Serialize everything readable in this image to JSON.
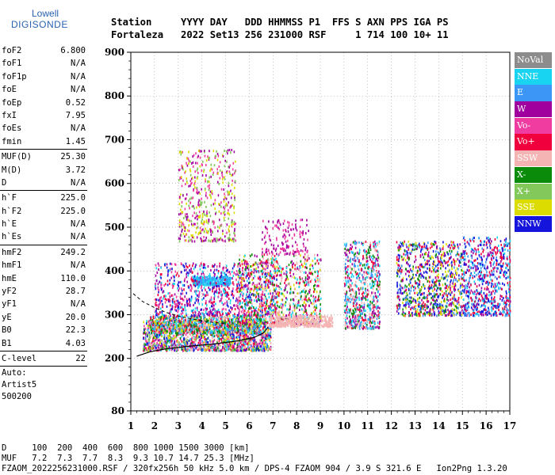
{
  "logo": {
    "line1": "Lowell",
    "line2": "DIGISONDE"
  },
  "header": {
    "line1": "Station     YYYY DAY   DDD HHMMSS P1  FFS S AXN PPS IGA PS",
    "line2": "Fortaleza   2022 Set13 256 231000 RSF     1 714 100 10+ 11"
  },
  "params": [
    {
      "group": [
        {
          "name": "foF2",
          "value": "6.800"
        },
        {
          "name": "foF1",
          "value": "N/A"
        },
        {
          "name": "foF1p",
          "value": "N/A"
        },
        {
          "name": "foE",
          "value": "N/A"
        },
        {
          "name": "foEp",
          "value": "0.52"
        },
        {
          "name": "fxI",
          "value": "7.95"
        },
        {
          "name": "foEs",
          "value": "N/A"
        },
        {
          "name": "fmin",
          "value": "1.45"
        }
      ]
    },
    {
      "group": [
        {
          "name": "MUF(D)",
          "value": "25.30"
        },
        {
          "name": "M(D)",
          "value": "3.72"
        },
        {
          "name": "D",
          "value": "N/A"
        }
      ]
    },
    {
      "group": [
        {
          "name": "h`F",
          "value": "225.0"
        },
        {
          "name": "h`F2",
          "value": "225.0"
        },
        {
          "name": "h`E",
          "value": "N/A"
        },
        {
          "name": "h`Es",
          "value": "N/A"
        }
      ]
    },
    {
      "group": [
        {
          "name": "hmF2",
          "value": "249.2"
        },
        {
          "name": "hmF1",
          "value": "N/A"
        },
        {
          "name": "hmE",
          "value": "110.0"
        },
        {
          "name": "yF2",
          "value": "28.7"
        },
        {
          "name": "yF1",
          "value": "N/A"
        },
        {
          "name": "yE",
          "value": "20.0"
        },
        {
          "name": "B0",
          "value": "22.3"
        },
        {
          "name": "B1",
          "value": "4.03"
        }
      ]
    },
    {
      "group": [
        {
          "name": "C-level",
          "value": "22"
        }
      ]
    }
  ],
  "autoscale": {
    "line1": "Auto:",
    "line2": "Artist5",
    "line3": "500200"
  },
  "legend": [
    {
      "label": "NoVal",
      "color": "#8c8c8c"
    },
    {
      "label": "NNE",
      "color": "#19d4f0"
    },
    {
      "label": "E",
      "color": "#3c96f5"
    },
    {
      "label": "W",
      "color": "#a0009e"
    },
    {
      "label": "Vo-",
      "color": "#f03ca0"
    },
    {
      "label": "Vo+",
      "color": "#f0003c"
    },
    {
      "label": "SSW",
      "color": "#f5b4b4"
    },
    {
      "label": "X-",
      "color": "#0a8c0a"
    },
    {
      "label": "X+",
      "color": "#82c85a"
    },
    {
      "label": "SSE",
      "color": "#dcdc00"
    },
    {
      "label": "NNW",
      "color": "#1414dc"
    }
  ],
  "footer": {
    "line1": "D     100  200  400  600  800 1000 1500 3000 [km]",
    "line2": "MUF   7.2  7.3  7.7  8.3  9.3 10.7 14.7 25.3 [MHz]",
    "line3": "FZAOM_2022256231000.RSF / 320fx256h 50 kHz 5.0 km / DPS-4 FZAOM 904 / 3.9 S 321.6 E   Ion2Png 1.3.20"
  },
  "chart_data": {
    "type": "scatter",
    "xlim": [
      1,
      17
    ],
    "ylim": [
      80,
      900
    ],
    "x_ticks": [
      1,
      2,
      3,
      4,
      5,
      6,
      7,
      8,
      9,
      10,
      11,
      12,
      13,
      14,
      15,
      16,
      17
    ],
    "y_ticks": [
      80,
      200,
      300,
      400,
      500,
      600,
      700,
      800,
      900
    ],
    "grid": "dotted",
    "legend_placement": "right",
    "trace_profile": {
      "x": [
        1.25,
        1.8,
        2.5,
        3.5,
        4.5,
        5.5,
        6.2,
        6.6,
        6.8
      ],
      "y": [
        205,
        215,
        222,
        228,
        233,
        240,
        248,
        258,
        272
      ]
    },
    "trace_dashed": {
      "x": [
        1.1,
        1.5,
        2.0,
        2.5,
        3.0,
        3.5,
        4.0,
        4.5,
        5.0
      ],
      "y": [
        348,
        330,
        316,
        305,
        297,
        291,
        286,
        282,
        280
      ]
    },
    "clusters": [
      {
        "x": [
          1.5,
          6.9
        ],
        "y": [
          220,
          290
        ],
        "n": 1600,
        "colors": [
          "Vo+",
          "Vo-",
          "W",
          "X-",
          "X+",
          "SSE",
          "E",
          "NNE",
          "NNW",
          "SSW"
        ]
      },
      {
        "x": [
          1.8,
          6.5
        ],
        "y": [
          260,
          300
        ],
        "n": 900,
        "colors": [
          "SSE",
          "E",
          "X-",
          "Vo+",
          "SSW",
          "NNE"
        ]
      },
      {
        "x": [
          3.0,
          5.4
        ],
        "y": [
          470,
          680
        ],
        "n": 500,
        "colors": [
          "SSE",
          "X+",
          "W",
          "Vo-"
        ]
      },
      {
        "x": [
          3.6,
          5.2
        ],
        "y": [
          370,
          390
        ],
        "n": 300,
        "colors": [
          "E",
          "NNE"
        ]
      },
      {
        "x": [
          2.0,
          7.2
        ],
        "y": [
          300,
          420
        ],
        "n": 900,
        "colors": [
          "W",
          "Vo-",
          "Vo+",
          "NNW",
          "NNE"
        ]
      },
      {
        "x": [
          5.5,
          9.0
        ],
        "y": [
          280,
          440
        ],
        "n": 900,
        "colors": [
          "Vo+",
          "SSW",
          "NNE",
          "X-",
          "SSE",
          "W"
        ]
      },
      {
        "x": [
          6.8,
          9.5
        ],
        "y": [
          275,
          300
        ],
        "n": 400,
        "colors": [
          "SSW"
        ]
      },
      {
        "x": [
          6.5,
          8.5
        ],
        "y": [
          440,
          520
        ],
        "n": 150,
        "colors": [
          "W",
          "Vo-"
        ]
      },
      {
        "x": [
          10.0,
          11.5
        ],
        "y": [
          270,
          470
        ],
        "n": 700,
        "colors": [
          "SSW",
          "Vo+",
          "NNE",
          "E",
          "X-",
          "W"
        ]
      },
      {
        "x": [
          12.2,
          15.0
        ],
        "y": [
          300,
          470
        ],
        "n": 900,
        "colors": [
          "Vo+",
          "NNW",
          "E",
          "SSE",
          "W",
          "X-"
        ]
      },
      {
        "x": [
          15.0,
          17.0
        ],
        "y": [
          300,
          480
        ],
        "n": 700,
        "colors": [
          "E",
          "W",
          "Vo+",
          "NNE",
          "NNW"
        ]
      }
    ]
  }
}
